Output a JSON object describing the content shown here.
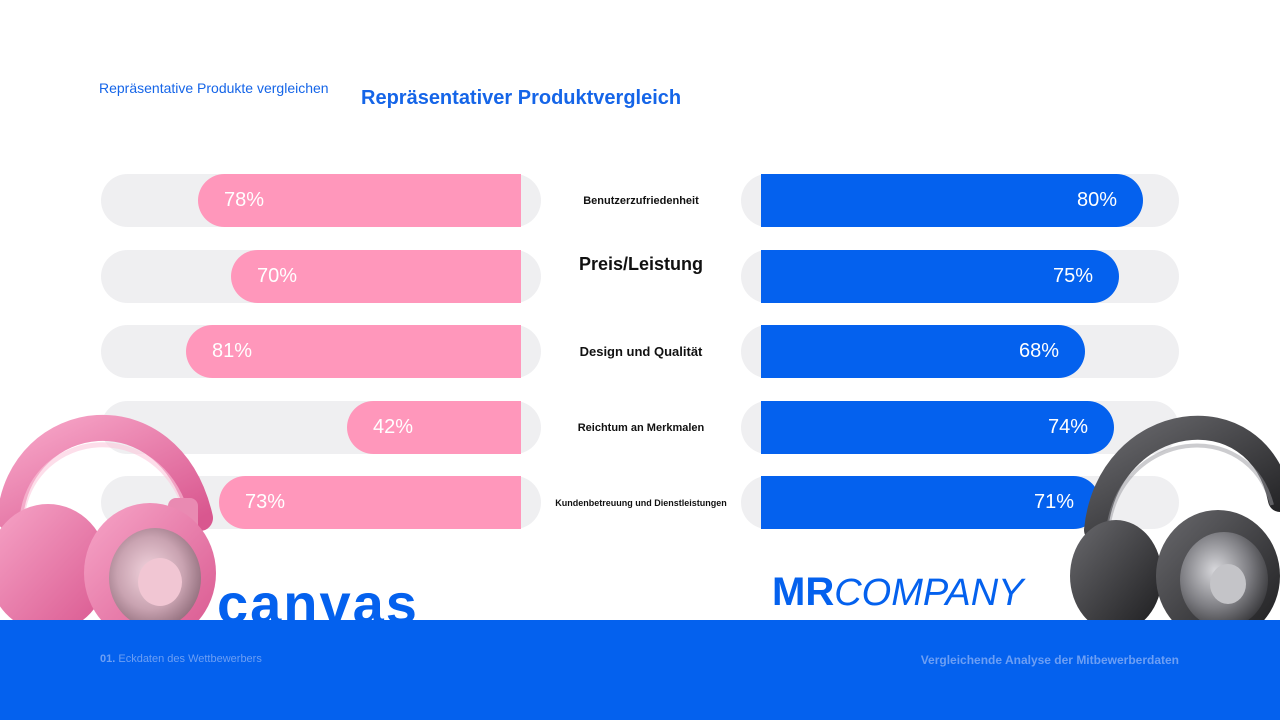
{
  "header": {
    "breadcrumb": "Repräsentative Produkte vergleichen",
    "title": "Repräsentativer Produktvergleich"
  },
  "chart_data": {
    "type": "bar",
    "orientation": "horizontal-diverging",
    "categories": [
      "Benutzerzufriedenheit",
      "Preis/Leistung",
      "Design und Qualität",
      "Reichtum an Merkmalen",
      "Kundenbetreuung und Dienstleistungen"
    ],
    "series": [
      {
        "name": "canvas",
        "color": "#ff97bb",
        "values": [
          78,
          70,
          81,
          42,
          73
        ],
        "labels": [
          "78%",
          "70%",
          "81%",
          "42%",
          "73%"
        ]
      },
      {
        "name": "MR COMPANY",
        "color": "#0461ee",
        "values": [
          80,
          75,
          68,
          74,
          71
        ],
        "labels": [
          "80%",
          "75%",
          "68%",
          "74%",
          "71%"
        ]
      }
    ],
    "xlim": [
      0,
      100
    ],
    "title": "Repräsentativer Produktvergleich"
  },
  "brands": {
    "left": "canvas",
    "right_prefix": "MR",
    "right_suffix": "COMPANY"
  },
  "footer": {
    "left_number": "01.",
    "left_text": "Eckdaten des Wettbewerbers",
    "right_text": "Vergleichende Analyse der Mitbewerberdaten"
  },
  "icons": [
    "headphones-pink-icon",
    "headphones-black-icon"
  ],
  "colors": {
    "accent": "#0461ee",
    "pink": "#ff97bb",
    "track": "#efeff1"
  }
}
